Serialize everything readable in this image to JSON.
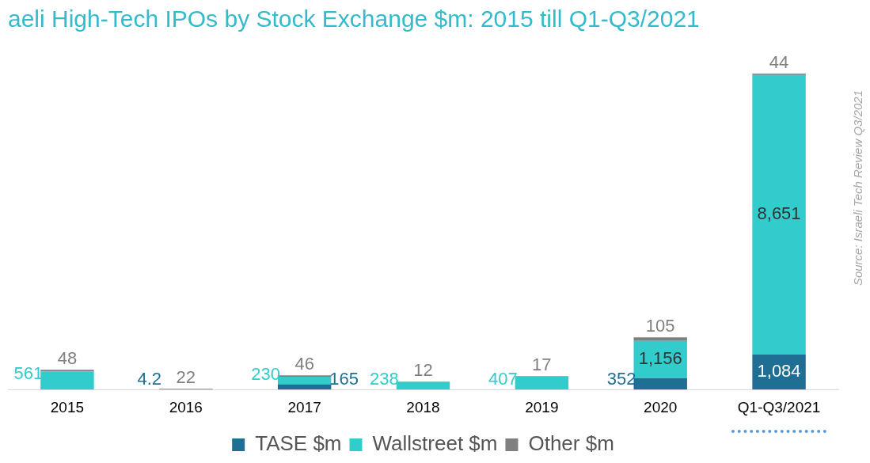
{
  "chart_data": {
    "type": "bar",
    "title": "aeli High-Tech IPOs by Stock Exchange $m: 2015 till Q1-Q3/2021",
    "categories": [
      "2015",
      "2016",
      "2017",
      "2018",
      "2019",
      "2020",
      "Q1-Q3/2021"
    ],
    "stacked": true,
    "legend": "bottom",
    "grid": false,
    "tick_labels": "x",
    "series": [
      {
        "name": "TASE $m",
        "color": "#1f6f94",
        "values": [
          null,
          4.2,
          165,
          null,
          null,
          352,
          1084
        ],
        "value_labels": [
          null,
          "4.2",
          "165",
          null,
          null,
          "352",
          "1,084"
        ]
      },
      {
        "name": "Wallstreet $m",
        "color": "#33cccc",
        "values": [
          561,
          null,
          230,
          238,
          407,
          1156,
          8651
        ],
        "value_labels": [
          "561",
          null,
          "230",
          "238",
          "407",
          "1,156",
          "8,651"
        ]
      },
      {
        "name": "Other $m",
        "color": "#808080",
        "values": [
          48,
          22,
          46,
          12,
          17,
          105,
          44
        ],
        "value_labels": [
          "48",
          "22",
          "46",
          "12",
          "17",
          "105",
          "44"
        ]
      }
    ],
    "annotations": [
      "Source: Israeli Tech Review Q3/2021"
    ]
  }
}
